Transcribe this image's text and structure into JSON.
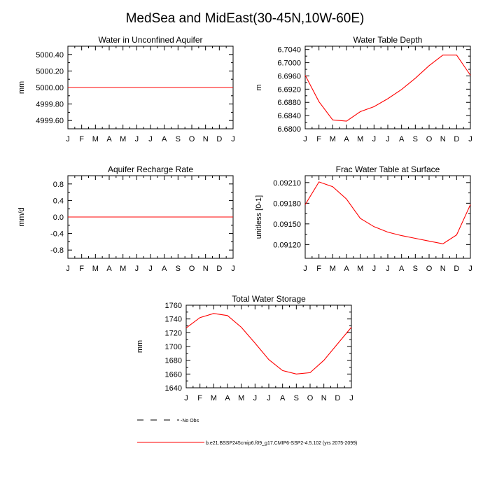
{
  "figure": {
    "title": "MedSea and MidEast(30-45N,10W-60E)"
  },
  "chart_data": [
    {
      "type": "line",
      "title": "Water in Unconfined Aquifer",
      "ylabel": "mm",
      "xlabel": "",
      "x": [
        "J",
        "F",
        "M",
        "A",
        "M",
        "J",
        "J",
        "A",
        "S",
        "O",
        "N",
        "D",
        "J"
      ],
      "ylim": [
        4999.5,
        5000.5
      ],
      "yticks": [
        4999.6,
        4999.8,
        5000.0,
        5000.2,
        5000.4
      ],
      "ytick_labels": [
        "4999.60",
        "4999.80",
        "5000.00",
        "5000.20",
        "5000.40"
      ],
      "series": [
        {
          "name": "b.e21.BSSP245cmip6.f09_g17.CMIP6-SSP2-4.5.102 (yrs 2075-2099)",
          "color": "#ff0000",
          "values": [
            5000,
            5000,
            5000,
            5000,
            5000,
            5000,
            5000,
            5000,
            5000,
            5000,
            5000,
            5000,
            5000
          ]
        }
      ]
    },
    {
      "type": "line",
      "title": "Water Table Depth",
      "ylabel": "m",
      "xlabel": "",
      "x": [
        "J",
        "F",
        "M",
        "A",
        "M",
        "J",
        "J",
        "A",
        "S",
        "O",
        "N",
        "D",
        "J"
      ],
      "ylim": [
        6.68,
        6.705
      ],
      "yticks": [
        6.68,
        6.684,
        6.688,
        6.692,
        6.696,
        6.7,
        6.704
      ],
      "ytick_labels": [
        "6.6800",
        "6.6840",
        "6.6880",
        "6.6920",
        "6.6960",
        "6.7000",
        "6.7040"
      ],
      "series": [
        {
          "name": "b.e21.BSSP245cmip6.f09_g17.CMIP6-SSP2-4.5.102 (yrs 2075-2099)",
          "color": "#ff0000",
          "values": [
            6.6962,
            6.6882,
            6.6827,
            6.6823,
            6.6852,
            6.6867,
            6.6891,
            6.6919,
            6.6953,
            6.6991,
            6.7023,
            6.7023,
            6.6962
          ]
        }
      ]
    },
    {
      "type": "line",
      "title": "Aquifer Recharge Rate",
      "ylabel": "mm/d",
      "xlabel": "",
      "x": [
        "J",
        "F",
        "M",
        "A",
        "M",
        "J",
        "J",
        "A",
        "S",
        "O",
        "N",
        "D",
        "J"
      ],
      "ylim": [
        -1.0,
        1.0
      ],
      "yticks": [
        -0.8,
        -0.4,
        0.0,
        0.4,
        0.8
      ],
      "ytick_labels": [
        "-0.8",
        "-0.4",
        "0.0",
        "0.4",
        "0.8"
      ],
      "series": [
        {
          "name": "b.e21.BSSP245cmip6.f09_g17.CMIP6-SSP2-4.5.102 (yrs 2075-2099)",
          "color": "#ff0000",
          "values": [
            0,
            0,
            0,
            0,
            0,
            0,
            0,
            0,
            0,
            0,
            0,
            0,
            0
          ]
        }
      ]
    },
    {
      "type": "line",
      "title": "Frac Water Table at Surface",
      "ylabel": "unitless [0-1]",
      "xlabel": "",
      "x": [
        "J",
        "F",
        "M",
        "A",
        "M",
        "J",
        "J",
        "A",
        "S",
        "O",
        "N",
        "D",
        "J"
      ],
      "ylim": [
        0.091,
        0.0922
      ],
      "yticks": [
        0.0912,
        0.0915,
        0.0918,
        0.0921
      ],
      "ytick_labels": [
        "0.09120",
        "0.09150",
        "0.09180",
        "0.09210"
      ],
      "series": [
        {
          "name": "b.e21.BSSP245cmip6.f09_g17.CMIP6-SSP2-4.5.102 (yrs 2075-2099)",
          "color": "#ff0000",
          "values": [
            0.09178,
            0.09211,
            0.09204,
            0.09186,
            0.09158,
            0.09146,
            0.09138,
            0.09133,
            0.09129,
            0.09125,
            0.09121,
            0.09134,
            0.09178
          ]
        }
      ]
    },
    {
      "type": "line",
      "title": "Total Water Storage",
      "ylabel": "mm",
      "xlabel": "",
      "x": [
        "J",
        "F",
        "M",
        "A",
        "M",
        "J",
        "J",
        "A",
        "S",
        "O",
        "N",
        "D",
        "J"
      ],
      "ylim": [
        1640,
        1760
      ],
      "yticks": [
        1640,
        1660,
        1680,
        1700,
        1720,
        1740,
        1760
      ],
      "ytick_labels": [
        "1640",
        "1660",
        "1680",
        "1700",
        "1720",
        "1740",
        "1760"
      ],
      "series": [
        {
          "name": "b.e21.BSSP245cmip6.f09_g17.CMIP6-SSP2-4.5.102 (yrs 2075-2099)",
          "color": "#ff0000",
          "values": [
            1727,
            1742,
            1748,
            1745,
            1728,
            1705,
            1681,
            1665,
            1660,
            1662,
            1680,
            1704,
            1728
          ]
        }
      ]
    }
  ],
  "legend": {
    "items": [
      {
        "label": "No Obs",
        "style": "dashed",
        "color": "#000000"
      },
      {
        "label": "b.e21.BSSP245cmip6.f09_g17.CMIP6-SSP2-4.5.102 (yrs 2075-2099)",
        "style": "solid",
        "color": "#ff0000"
      }
    ]
  }
}
